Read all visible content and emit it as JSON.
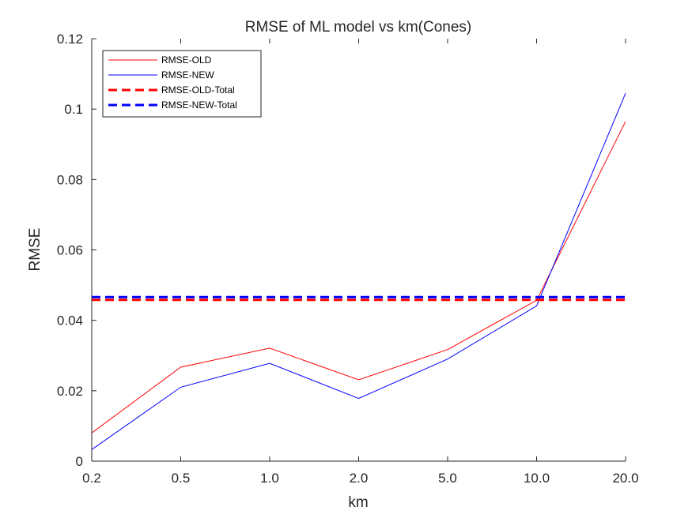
{
  "chart_data": {
    "type": "line",
    "title": "RMSE of ML model vs km(Cones)",
    "xlabel": "km",
    "ylabel": "RMSE",
    "categories": [
      "0.2",
      "0.5",
      "1.0",
      "2.0",
      "5.0",
      "10.0",
      "20.0"
    ],
    "ylim": [
      0,
      0.12
    ],
    "yticks": [
      0,
      0.02,
      0.04,
      0.06,
      0.08,
      0.1,
      0.12
    ],
    "ytick_labels": [
      "0",
      "0.02",
      "0.04",
      "0.06",
      "0.08",
      "0.1",
      "0.12"
    ],
    "grid": false,
    "legend_position": "top-left",
    "series": [
      {
        "name": "RMSE-OLD",
        "color": "#ff0000",
        "style": "solid",
        "values": [
          0.008,
          0.0267,
          0.0321,
          0.0231,
          0.0317,
          0.0457,
          0.0965
        ]
      },
      {
        "name": "RMSE-NEW",
        "color": "#0000ff",
        "style": "solid",
        "values": [
          0.0033,
          0.021,
          0.0278,
          0.0178,
          0.029,
          0.0441,
          0.1045
        ]
      },
      {
        "name": "RMSE-OLD-Total",
        "color": "#ff0000",
        "style": "dashed",
        "values": [
          0.0458,
          0.0458,
          0.0458,
          0.0458,
          0.0458,
          0.0458,
          0.0458
        ]
      },
      {
        "name": "RMSE-NEW-Total",
        "color": "#0000ff",
        "style": "dashed",
        "values": [
          0.0466,
          0.0466,
          0.0466,
          0.0466,
          0.0466,
          0.0466,
          0.0466
        ]
      }
    ]
  }
}
